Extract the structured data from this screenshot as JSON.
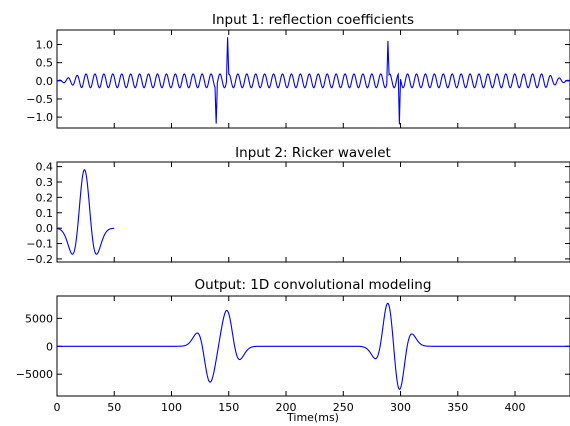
{
  "chart_data": [
    {
      "type": "line",
      "title": "Input 1: reflection coefficients",
      "xlim": [
        0,
        448
      ],
      "ylim": [
        -1.3,
        1.4
      ],
      "yticks": [
        {
          "value": 1.0,
          "label": "1.0"
        },
        {
          "value": 0.5,
          "label": "0.5"
        },
        {
          "value": 0.0,
          "label": "0.0"
        },
        {
          "value": -0.5,
          "label": "−0.5"
        },
        {
          "value": -1.0,
          "label": "−1.0"
        }
      ],
      "color": "#0000ff",
      "background": {
        "kind": "sinusoid",
        "amplitude": 0.19,
        "period_ms": 7.8,
        "taper_ms": 22
      },
      "spikes": [
        {
          "x": 139,
          "y": -1.18
        },
        {
          "x": 149,
          "y": 1.2
        },
        {
          "x": 289,
          "y": 1.1
        },
        {
          "x": 299,
          "y": -1.2
        }
      ]
    },
    {
      "type": "line",
      "title": "Input 2: Ricker wavelet",
      "xlim": [
        0,
        448
      ],
      "ylim": [
        -0.22,
        0.43
      ],
      "yticks": [
        {
          "value": 0.4,
          "label": "0.4"
        },
        {
          "value": 0.3,
          "label": "0.3"
        },
        {
          "value": 0.2,
          "label": "0.2"
        },
        {
          "value": 0.1,
          "label": "0.1"
        },
        {
          "value": 0.0,
          "label": "0.0"
        },
        {
          "value": -0.1,
          "label": "−0.1"
        },
        {
          "value": -0.2,
          "label": "−0.2"
        }
      ],
      "color": "#0000ff",
      "wavelet": {
        "center_ms": 24,
        "duration_ms": 50,
        "peak": 0.38,
        "trough": -0.17,
        "trough_offset_ms": 10.5
      }
    },
    {
      "type": "line",
      "title": "Output: 1D convolutional modeling",
      "xlim": [
        0,
        448
      ],
      "ylim": [
        -8900,
        9000
      ],
      "xlabel": "Time(ms)",
      "xticks": [
        {
          "value": 0,
          "label": "0"
        },
        {
          "value": 50,
          "label": "50"
        },
        {
          "value": 100,
          "label": "100"
        },
        {
          "value": 150,
          "label": "150"
        },
        {
          "value": 200,
          "label": "200"
        },
        {
          "value": 250,
          "label": "250"
        },
        {
          "value": 300,
          "label": "300"
        },
        {
          "value": 350,
          "label": "350"
        },
        {
          "value": 400,
          "label": "400"
        }
      ],
      "yticks": [
        {
          "value": 5000,
          "label": "5000"
        },
        {
          "value": 0,
          "label": "0"
        },
        {
          "value": -5000,
          "label": "−5000"
        }
      ],
      "color": "#0000ff",
      "events": [
        {
          "x": 133,
          "y": -7600
        },
        {
          "x": 125,
          "y": 2300
        },
        {
          "x": 149,
          "y": 7700
        },
        {
          "x": 158,
          "y": -2400
        },
        {
          "x": 280,
          "y": -2400
        },
        {
          "x": 289,
          "y": 7700
        },
        {
          "x": 299,
          "y": -7600
        },
        {
          "x": 307,
          "y": 2300
        }
      ]
    }
  ]
}
